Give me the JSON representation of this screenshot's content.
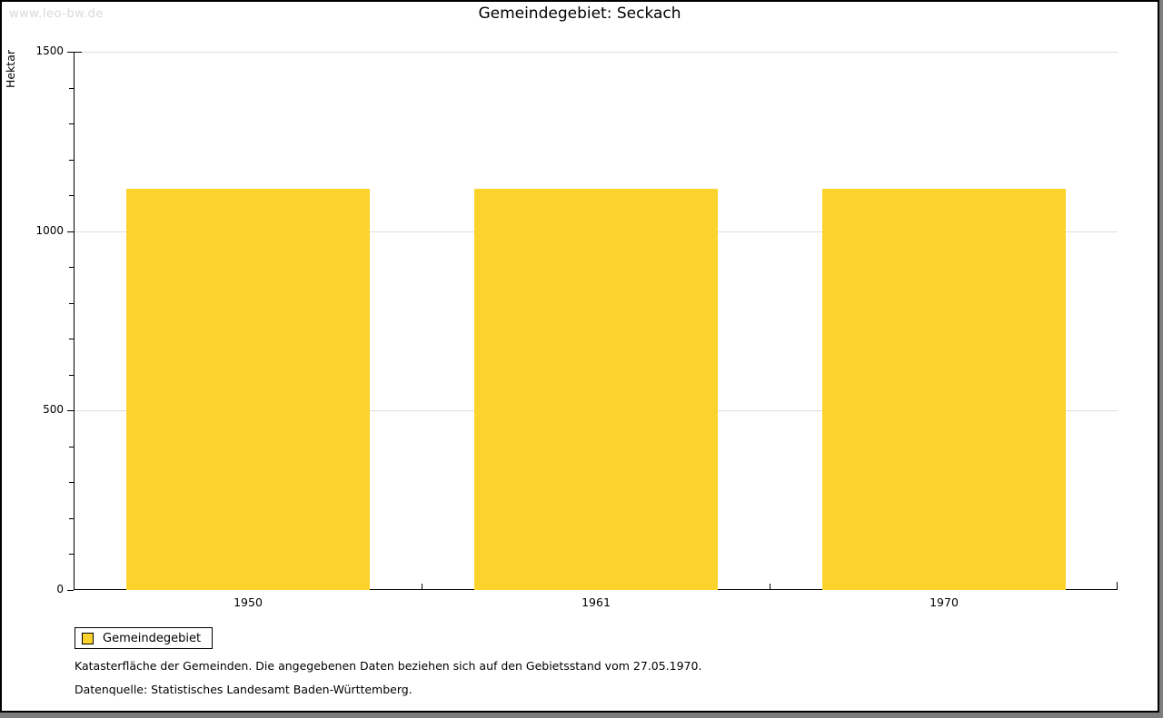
{
  "watermark": "www.leo-bw.de",
  "header": {
    "title": "Gemeindegebiet: Seckach"
  },
  "legend": {
    "label": "Gemeindegebiet",
    "swatch_color": "#fcd32d"
  },
  "footer": {
    "line1": "Katasterfläche der Gemeinden. Die angegebenen Daten beziehen sich auf den Gebietsstand vom 27.05.1970.",
    "line2": "Datenquelle: Statistisches Landesamt Baden-Württemberg."
  },
  "chart_data": {
    "type": "bar",
    "title": "Gemeindegebiet: Seckach",
    "categories": [
      "1950",
      "1961",
      "1970"
    ],
    "series": [
      {
        "name": "Gemeindegebiet",
        "values": [
          1118,
          1118,
          1118
        ]
      }
    ],
    "xlabel": "",
    "ylabel": "Hektar",
    "ylim": [
      0,
      1500
    ],
    "yticks_major": [
      0,
      500,
      1000,
      1500
    ],
    "ytick_minor_step": 100,
    "bar_color": "#fcd32d",
    "grid": "horizontal-at-major-ticks",
    "gridline_color": "#dddddd",
    "legend_position": "bottom-left"
  }
}
